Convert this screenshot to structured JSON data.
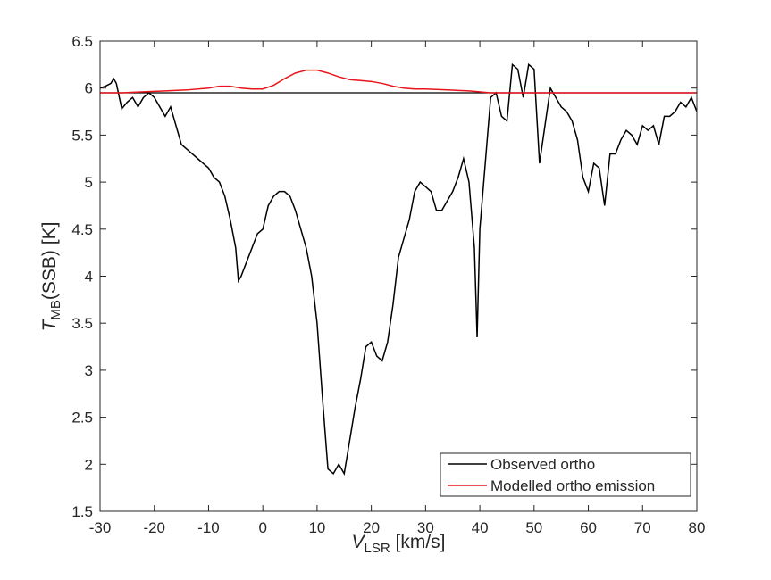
{
  "chart_data": {
    "type": "line",
    "xlabel": {
      "main": "V",
      "sub": "LSR",
      "rest": " [km/s]"
    },
    "ylabel": {
      "main": "T",
      "sub": "MB",
      "rest": "(SSB) [K]"
    },
    "xlim": [
      -30,
      80
    ],
    "xticks": [
      -30,
      -20,
      -10,
      0,
      10,
      20,
      30,
      40,
      50,
      60,
      70,
      80
    ],
    "ylim": [
      1.5,
      6.5
    ],
    "yticks": [
      1.5,
      2,
      2.5,
      3,
      3.5,
      4,
      4.5,
      5,
      5.5,
      6,
      6.5
    ],
    "reference_line": 5.95,
    "reference_color": "#000000",
    "legend": "lower right",
    "series": [
      {
        "name": "Observed ortho",
        "color": "#000000",
        "x": [
          -30,
          -29,
          -28,
          -27.5,
          -27,
          -26,
          -25,
          -24,
          -23,
          -22,
          -21,
          -20,
          -19,
          -18,
          -17,
          -16,
          -15,
          -14,
          -13,
          -12,
          -11,
          -10,
          -9,
          -8,
          -7,
          -6,
          -5,
          -4.5,
          -4,
          -3,
          -2,
          -1,
          0,
          1,
          2,
          3,
          4,
          5,
          6,
          7,
          8,
          9,
          10,
          11,
          12,
          13,
          14,
          15,
          16,
          17,
          18,
          19,
          20,
          21,
          22,
          23,
          24,
          25,
          26,
          27,
          28,
          29,
          30,
          31,
          32,
          33,
          34,
          35,
          36,
          37,
          38,
          39,
          39.5,
          40,
          41,
          42,
          43,
          44,
          45,
          46,
          47,
          48,
          49,
          50,
          51,
          52,
          53,
          54,
          55,
          56,
          57,
          58,
          59,
          60,
          61,
          62,
          63,
          64,
          65,
          66,
          67,
          68,
          69,
          70,
          71,
          72,
          73,
          74,
          75,
          76,
          77,
          78,
          79,
          80
        ],
        "values": [
          6.0,
          6.02,
          6.05,
          6.1,
          6.05,
          5.78,
          5.85,
          5.9,
          5.8,
          5.9,
          5.95,
          5.9,
          5.8,
          5.7,
          5.8,
          5.6,
          5.4,
          5.35,
          5.3,
          5.25,
          5.2,
          5.15,
          5.05,
          5.0,
          4.85,
          4.6,
          4.3,
          3.95,
          4.0,
          4.15,
          4.3,
          4.45,
          4.5,
          4.75,
          4.85,
          4.9,
          4.9,
          4.85,
          4.7,
          4.5,
          4.3,
          4.0,
          3.5,
          2.7,
          1.95,
          1.9,
          2.0,
          1.9,
          2.25,
          2.6,
          2.9,
          3.25,
          3.3,
          3.15,
          3.1,
          3.3,
          3.7,
          4.2,
          4.4,
          4.6,
          4.9,
          5.0,
          4.95,
          4.9,
          4.7,
          4.7,
          4.8,
          4.9,
          5.05,
          5.25,
          5.0,
          4.3,
          3.35,
          4.5,
          5.2,
          5.9,
          5.95,
          5.7,
          5.65,
          6.25,
          6.2,
          5.9,
          6.25,
          6.2,
          5.2,
          5.6,
          6.0,
          5.9,
          5.8,
          5.75,
          5.65,
          5.45,
          5.05,
          4.9,
          5.2,
          5.15,
          4.75,
          5.3,
          5.3,
          5.45,
          5.55,
          5.5,
          5.4,
          5.6,
          5.55,
          5.6,
          5.4,
          5.7,
          5.7,
          5.75,
          5.85,
          5.8,
          5.9,
          5.75
        ]
      },
      {
        "name": "Modelled ortho emission",
        "color": "#e8141c",
        "x": [
          -30,
          -26,
          -22,
          -18,
          -14,
          -10,
          -8,
          -6,
          -4,
          -2,
          0,
          2,
          4,
          6,
          8,
          10,
          12,
          14,
          16,
          18,
          20,
          22,
          24,
          26,
          28,
          30,
          34,
          38,
          42,
          50,
          60,
          70,
          80
        ],
        "values": [
          5.95,
          5.95,
          5.96,
          5.97,
          5.98,
          6.0,
          6.02,
          6.02,
          6.0,
          5.99,
          5.99,
          6.03,
          6.1,
          6.16,
          6.19,
          6.19,
          6.16,
          6.12,
          6.09,
          6.08,
          6.07,
          6.05,
          6.02,
          6.0,
          5.99,
          5.99,
          5.98,
          5.97,
          5.95,
          5.95,
          5.95,
          5.95,
          5.95
        ]
      }
    ]
  }
}
